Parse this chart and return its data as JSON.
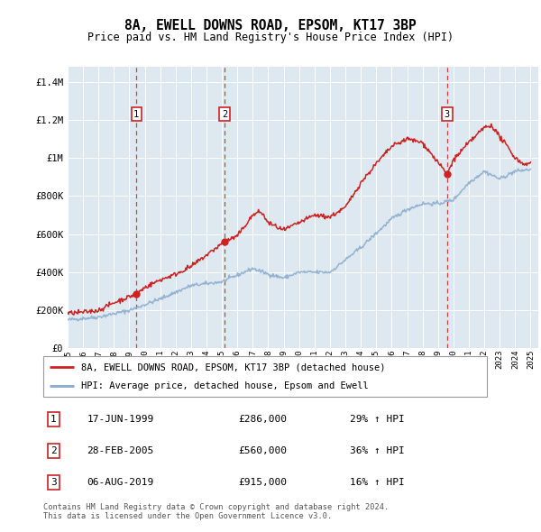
{
  "title": "8A, EWELL DOWNS ROAD, EPSOM, KT17 3BP",
  "subtitle": "Price paid vs. HM Land Registry's House Price Index (HPI)",
  "ylabel_values": [
    0,
    200000,
    400000,
    600000,
    800000,
    1000000,
    1200000,
    1400000
  ],
  "ylim": [
    0,
    1480000
  ],
  "sale_year_nums": [
    1999.46,
    2005.16,
    2019.59
  ],
  "sale_prices": [
    286000,
    560000,
    915000
  ],
  "sale_labels": [
    "1",
    "2",
    "3"
  ],
  "sale_pct": [
    "29%",
    "36%",
    "16%"
  ],
  "sale_info": [
    "17-JUN-1999",
    "28-FEB-2005",
    "06-AUG-2019"
  ],
  "sale_price_str": [
    "£286,000",
    "£560,000",
    "£915,000"
  ],
  "legend_line1": "8A, EWELL DOWNS ROAD, EPSOM, KT17 3BP (detached house)",
  "legend_line2": "HPI: Average price, detached house, Epsom and Ewell",
  "footer": "Contains HM Land Registry data © Crown copyright and database right 2024.\nThis data is licensed under the Open Government Licence v3.0.",
  "line_color_red": "#cc2222",
  "line_color_blue": "#88aacc",
  "dashed_color": "#cc2222",
  "bg_color": "#dde8f0",
  "hpi_ref_years": [
    1995,
    1997,
    1999,
    2001,
    2003,
    2005,
    2007,
    2008,
    2009,
    2010,
    2012,
    2014,
    2016,
    2017,
    2018,
    2019,
    2020,
    2021,
    2022,
    2023,
    2024,
    2025
  ],
  "hpi_ref_vals": [
    150000,
    165000,
    200000,
    260000,
    330000,
    350000,
    420000,
    390000,
    370000,
    400000,
    400000,
    530000,
    680000,
    730000,
    760000,
    760000,
    780000,
    870000,
    930000,
    890000,
    930000,
    940000
  ],
  "red_ref_years": [
    1995,
    1996,
    1997,
    1998,
    1999.46,
    2000,
    2001,
    2002,
    2003,
    2004,
    2005.16,
    2006,
    2007,
    2007.5,
    2008,
    2009,
    2010,
    2011,
    2012,
    2013,
    2014,
    2015,
    2016,
    2017,
    2018,
    2019.59,
    2020,
    2021,
    2022,
    2022.5,
    2023,
    2023.5,
    2024,
    2024.5
  ],
  "red_ref_vals": [
    185000,
    190000,
    200000,
    240000,
    286000,
    320000,
    360000,
    390000,
    430000,
    490000,
    560000,
    590000,
    700000,
    720000,
    660000,
    620000,
    660000,
    700000,
    690000,
    740000,
    870000,
    970000,
    1060000,
    1100000,
    1080000,
    915000,
    990000,
    1080000,
    1160000,
    1170000,
    1110000,
    1060000,
    1000000,
    970000
  ],
  "noise_seed": 42
}
